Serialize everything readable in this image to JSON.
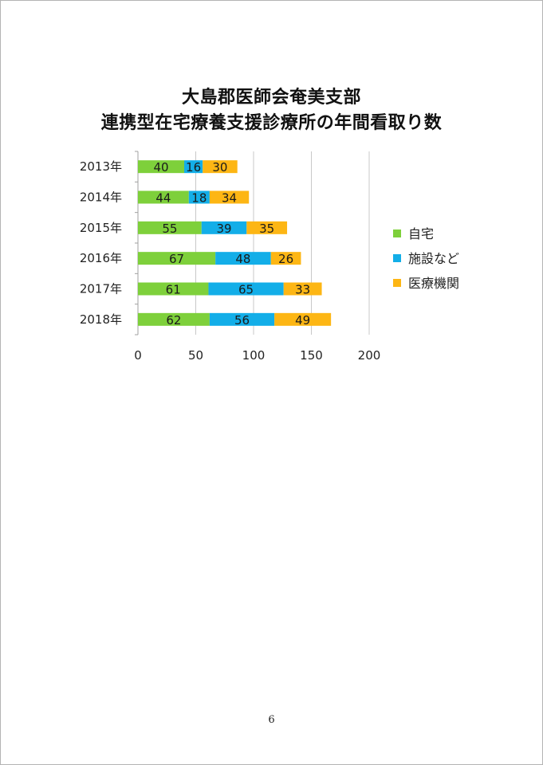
{
  "chart_data": {
    "type": "bar",
    "orientation": "horizontal",
    "stacked": true,
    "title_lines": [
      "大島郡医師会奄美支部",
      "連携型在宅療養支援診療所の年間看取り数"
    ],
    "categories": [
      "2013年",
      "2014年",
      "2015年",
      "2016年",
      "2017年",
      "2018年"
    ],
    "series": [
      {
        "name": "自宅",
        "color": "#7ed03b",
        "values": [
          40,
          44,
          55,
          67,
          61,
          62
        ]
      },
      {
        "name": "施設など",
        "color": "#13aee8",
        "values": [
          16,
          18,
          39,
          48,
          65,
          56
        ]
      },
      {
        "name": "医療機関",
        "color": "#fdb614",
        "values": [
          30,
          34,
          35,
          26,
          33,
          49
        ]
      }
    ],
    "xlim": [
      0,
      200
    ],
    "xticks": [
      "0",
      "50",
      "100",
      "150",
      "200"
    ],
    "grid": true,
    "legend_position": "right",
    "data_labels": true
  },
  "page": {
    "number": "6"
  }
}
